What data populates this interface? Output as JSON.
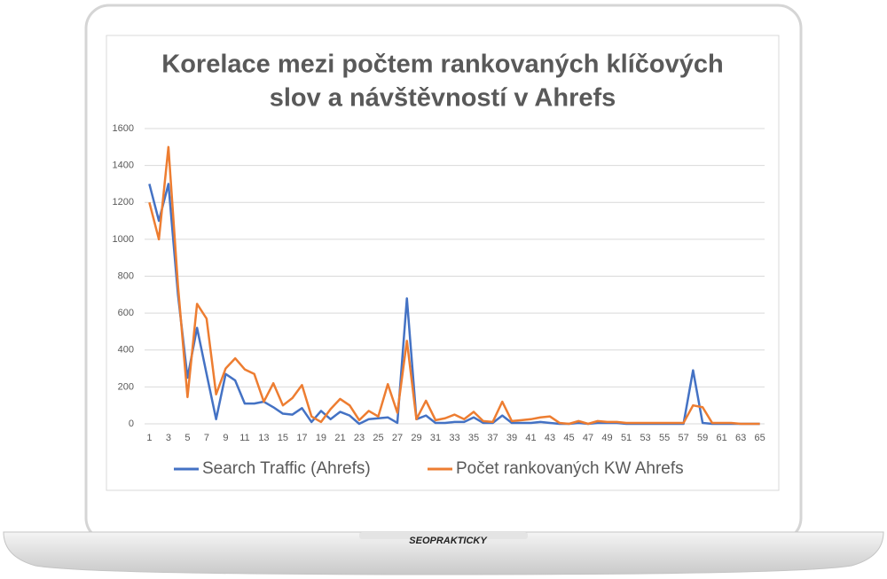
{
  "brand": "SEOPRAKTICKY",
  "chart_data": {
    "type": "line",
    "title": [
      "Korelace mezi počtem rankovaných klíčových",
      "slov a návštěvností v Ahrefs"
    ],
    "categories": [
      1,
      null,
      3,
      null,
      5,
      null,
      7,
      null,
      9,
      null,
      11,
      null,
      13,
      null,
      15,
      null,
      17,
      null,
      19,
      null,
      21,
      null,
      23,
      null,
      25,
      null,
      27,
      null,
      29,
      null,
      31,
      null,
      33,
      null,
      35,
      null,
      37,
      null,
      39,
      null,
      41,
      null,
      43,
      null,
      45,
      null,
      47,
      null,
      49,
      null,
      51,
      null,
      53,
      null,
      55,
      null,
      57,
      null,
      59,
      null,
      61,
      null,
      63,
      null,
      65
    ],
    "series": [
      {
        "name": "Search Traffic (Ahrefs)",
        "color": "#4472c4",
        "values": [
          1300,
          1100,
          1300,
          700,
          250,
          520,
          270,
          25,
          270,
          235,
          110,
          110,
          120,
          90,
          55,
          50,
          85,
          10,
          70,
          25,
          65,
          45,
          0,
          25,
          30,
          35,
          5,
          680,
          25,
          45,
          5,
          5,
          10,
          10,
          35,
          5,
          5,
          45,
          5,
          5,
          5,
          10,
          5,
          0,
          0,
          5,
          0,
          5,
          5,
          5,
          0,
          0,
          0,
          0,
          0,
          0,
          0,
          290,
          5,
          0,
          0,
          0,
          0,
          0,
          0
        ]
      },
      {
        "name": "Počet rankovaných KW Ahrefs",
        "color": "#ed7d31",
        "values": [
          1200,
          1000,
          1500,
          750,
          145,
          650,
          570,
          160,
          300,
          355,
          295,
          270,
          120,
          220,
          100,
          140,
          210,
          40,
          10,
          80,
          135,
          100,
          20,
          70,
          40,
          215,
          60,
          450,
          25,
          125,
          20,
          30,
          50,
          25,
          65,
          15,
          10,
          120,
          15,
          20,
          25,
          35,
          40,
          5,
          0,
          15,
          0,
          15,
          10,
          10,
          5,
          5,
          5,
          5,
          5,
          5,
          5,
          100,
          90,
          5,
          5,
          5,
          0,
          0,
          0
        ]
      }
    ],
    "ylim": [
      0,
      1600
    ],
    "yticks": [
      0,
      200,
      400,
      600,
      800,
      1000,
      1200,
      1400,
      1600
    ],
    "grid": true,
    "legend": "bottom"
  }
}
